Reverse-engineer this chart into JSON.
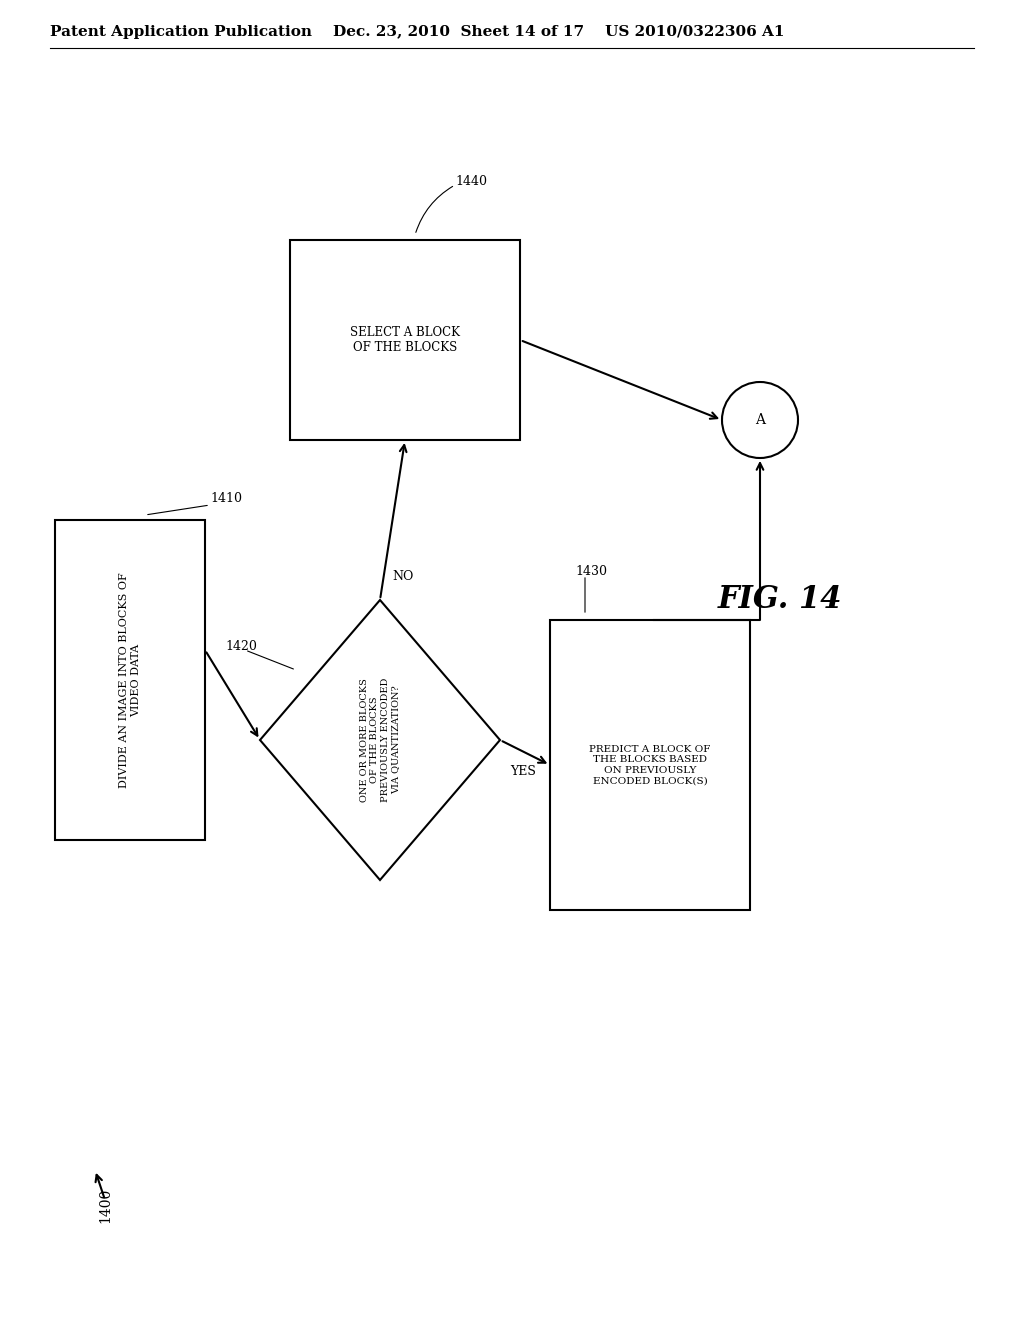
{
  "background_color": "#ffffff",
  "header_text": "Patent Application Publication    Dec. 23, 2010  Sheet 14 of 17    US 2010/0322306 A1",
  "header_fontsize": 11,
  "fig_label": "FIG. 14",
  "fig_label_fontsize": 22,
  "diagram_label": "1400",
  "box1410_label": "1410",
  "box1420_label": "1420",
  "box1430_label": "1430",
  "box1440_label": "1440",
  "box1410_text": "DIVIDE AN IMAGE INTO BLOCKS OF\nVIDEO DATA",
  "box1420_text": "ONE OR MORE BLOCKS\nOF THE BLOCKS\nPREVIOUSLY ENCODED\nVIA QUANTIZATION?",
  "box1430_text": "PREDICT A BLOCK OF\nTHE BLOCKS BASED\nON PREVIOUSLY\nENCODED BLOCK(S)",
  "box1440_text": "SELECT A BLOCK\nOF THE BLOCKS",
  "connector_label": "A",
  "yes_label": "YES",
  "no_label": "NO",
  "text_color": "#000000",
  "box_edge_color": "#000000",
  "arrow_color": "#000000",
  "line_width": 1.5
}
